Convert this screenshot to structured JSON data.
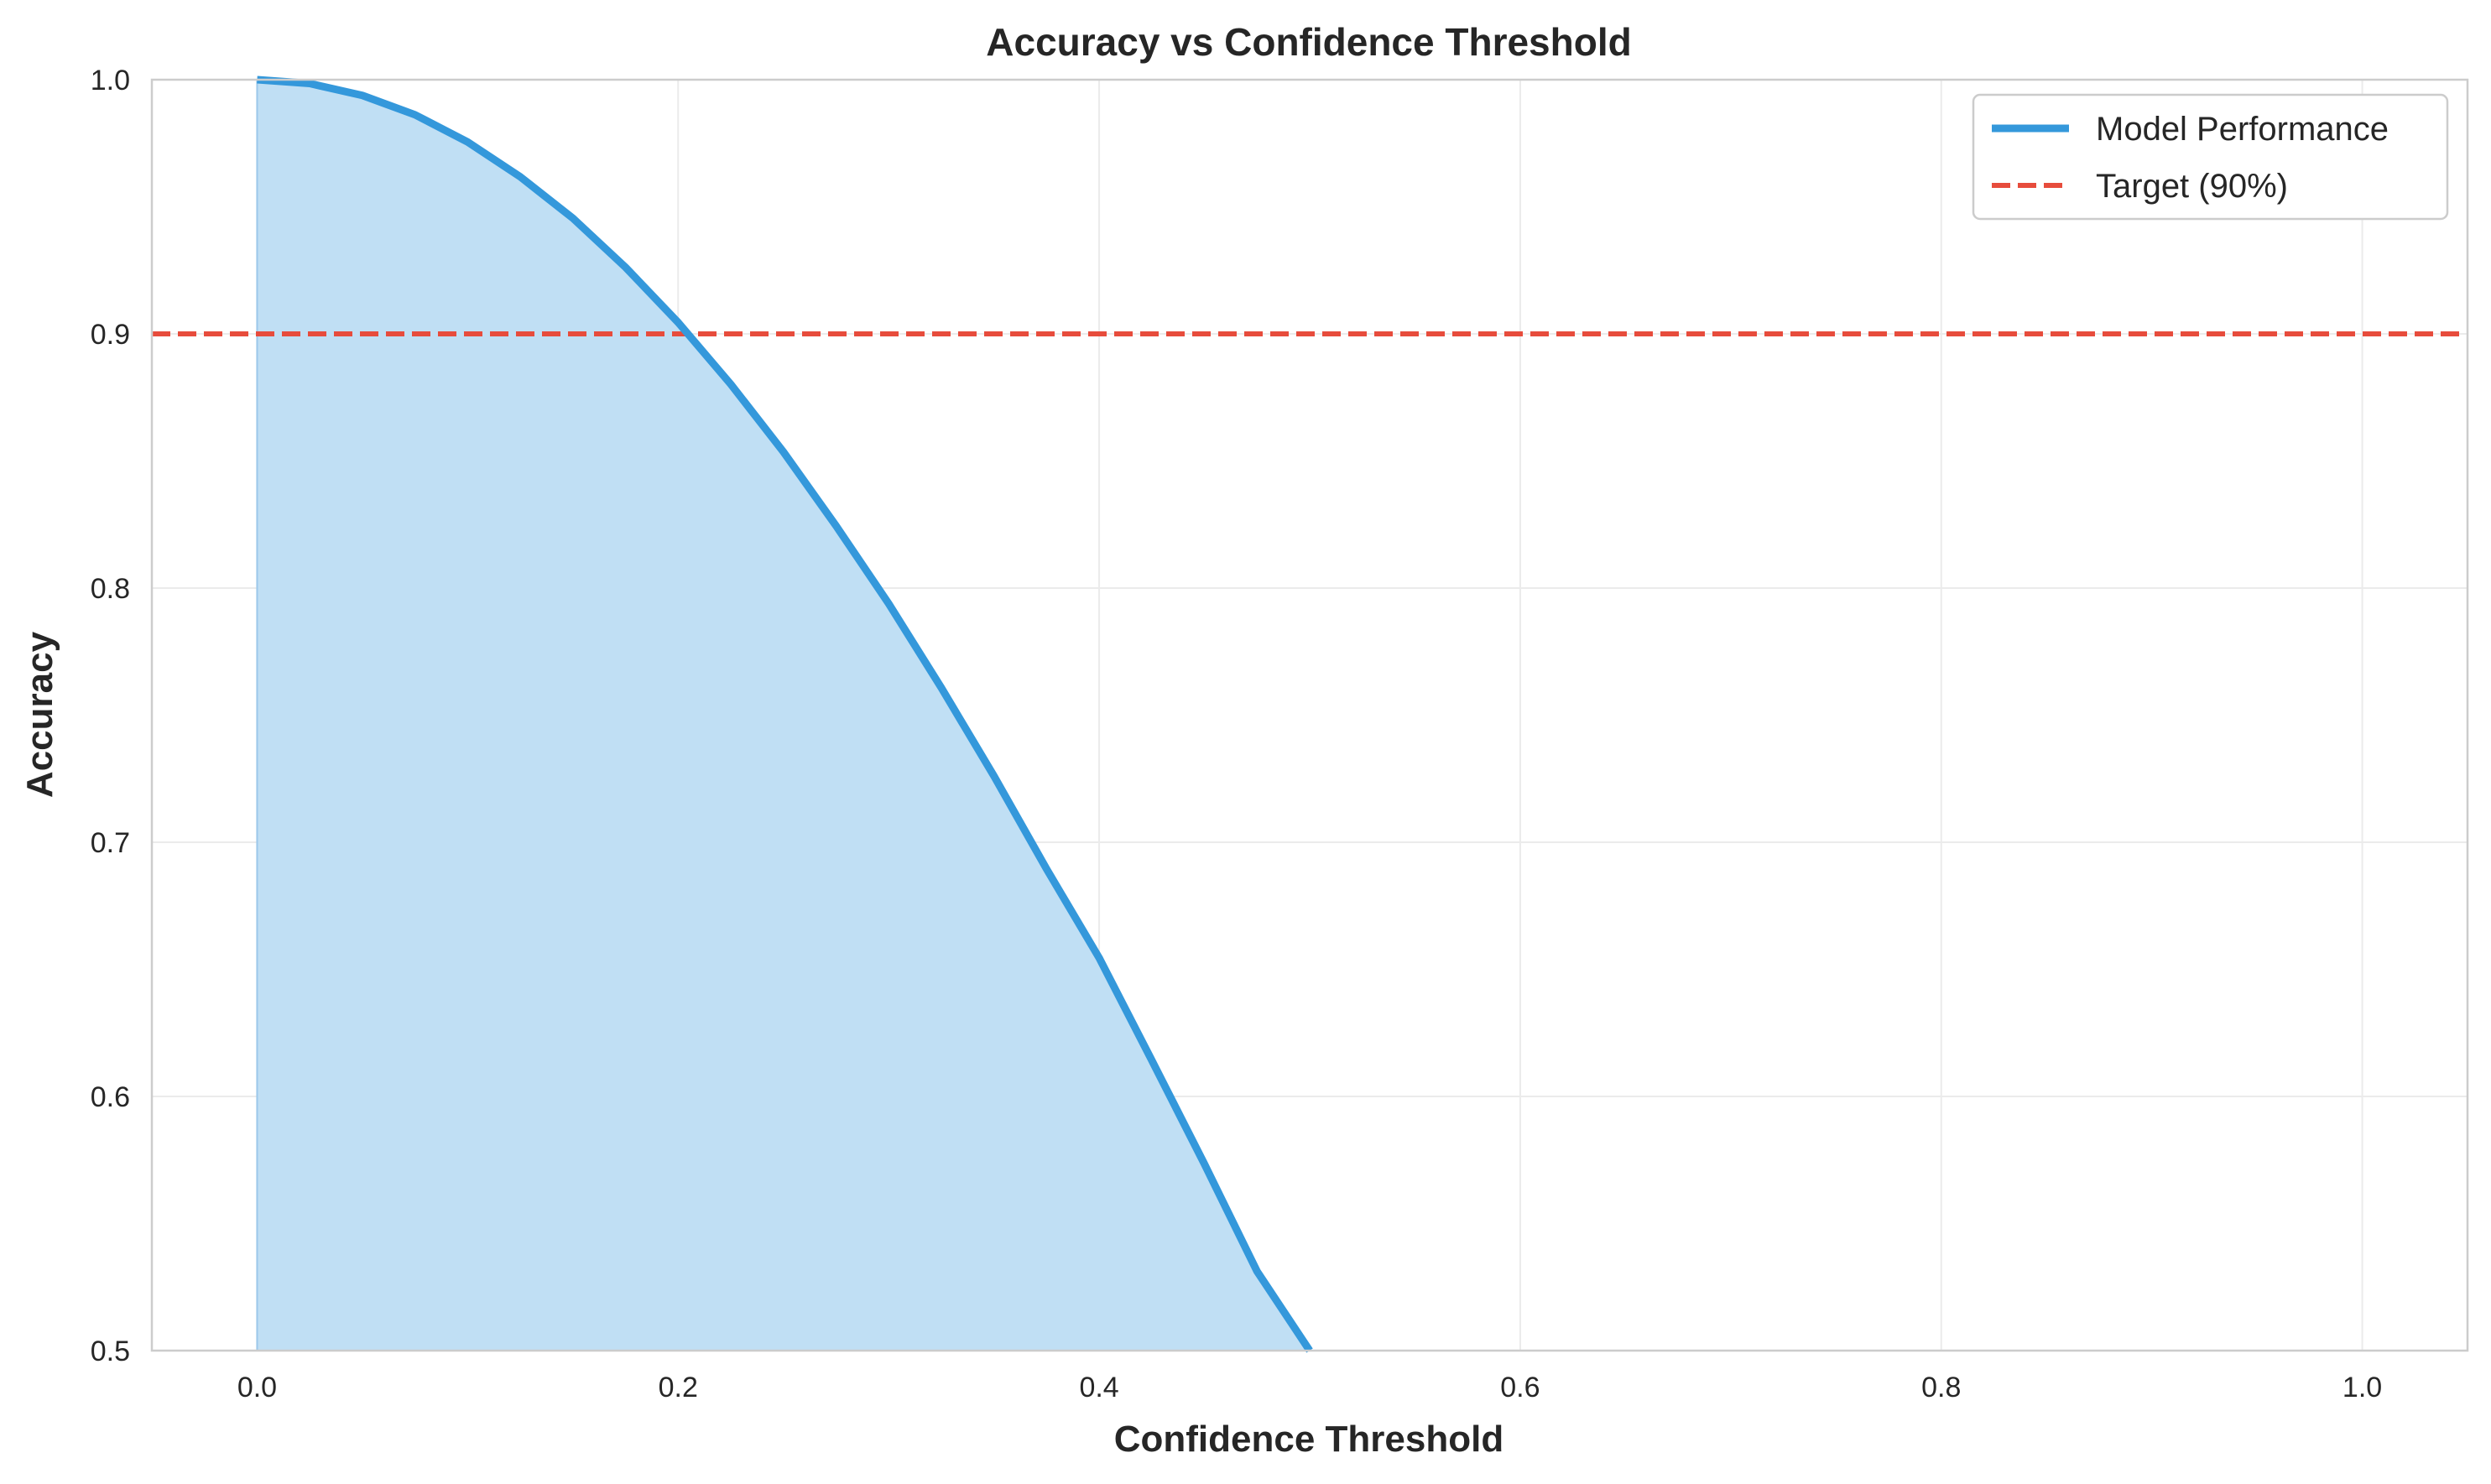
{
  "chart_data": {
    "type": "line",
    "title": "Accuracy vs Confidence Threshold",
    "xlabel": "Confidence Threshold",
    "ylabel": "Accuracy",
    "xlim": [
      -0.05,
      1.05
    ],
    "ylim": [
      0.5,
      1.0
    ],
    "xticks": [
      "0.0",
      "0.2",
      "0.4",
      "0.6",
      "0.8",
      "1.0"
    ],
    "yticks": [
      "0.5",
      "0.6",
      "0.7",
      "0.8",
      "0.9",
      "1.0"
    ],
    "grid": true,
    "legend_position": "top-right",
    "series": [
      {
        "name": "Model Performance",
        "style": "solid",
        "fill_under": true,
        "color": "#3498db",
        "fill_color": "#c0dff4",
        "x": [
          0.0,
          0.025,
          0.05,
          0.075,
          0.1,
          0.125,
          0.15,
          0.175,
          0.2,
          0.225,
          0.25,
          0.275,
          0.3,
          0.325,
          0.35,
          0.375,
          0.4,
          0.425,
          0.45,
          0.475,
          0.5
        ],
        "y": [
          1.0,
          0.9985,
          0.9938,
          0.9862,
          0.9755,
          0.9618,
          0.9455,
          0.9262,
          0.9045,
          0.8802,
          0.8536,
          0.8245,
          0.7939,
          0.7608,
          0.7261,
          0.6895,
          0.6545,
          0.6142,
          0.5734,
          0.5312,
          0.5
        ]
      },
      {
        "name": "Target (90%)",
        "style": "dashed",
        "color": "#e74c3c",
        "y_constant": 0.9
      }
    ]
  }
}
